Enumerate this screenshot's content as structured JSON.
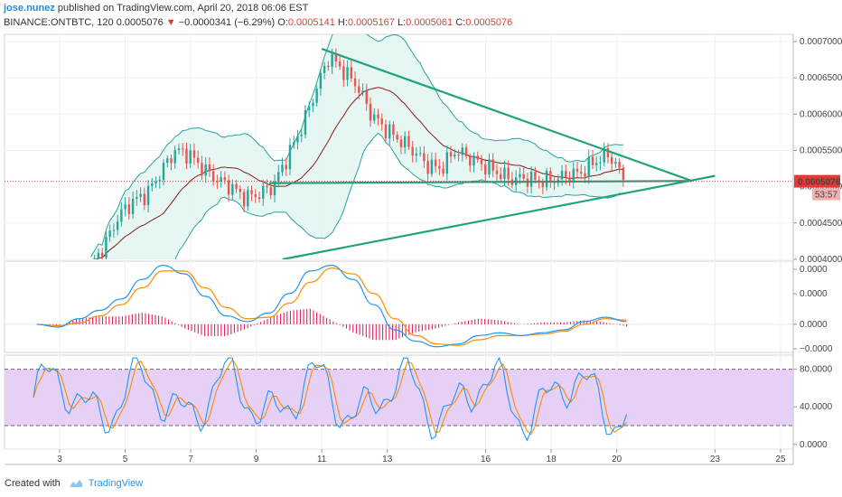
{
  "header": {
    "author": "jose.nunez",
    "published": "published on TradingView.com, April 20, 2018 06:06 EST",
    "symbol": "BINANCE:ONTBTC, 120",
    "last": "0.0005076",
    "change_arrow": "▼",
    "change": "−0.0000341 (−6.29%)",
    "o_label": "O:",
    "o_value": "0.0005141",
    "h_label": "H:",
    "h_value": "0.0005167",
    "l_label": "L:",
    "l_value": "0.0005061",
    "c_label": "C:",
    "c_value": "0.0005076"
  },
  "footer": {
    "created": "Created with",
    "brand": "TradingView"
  },
  "colors": {
    "up": "#26a69a",
    "down": "#ef5350",
    "bb": "#26a69a",
    "bb_fill": "#e0f4ef",
    "basis": "#8b1a1a",
    "trendline": "#1fa37a",
    "macd": "#2196f3",
    "signal": "#ff8a00",
    "hist": "#e91e63",
    "stoch_band": "#e3c8f5",
    "price_line": "#e53935"
  },
  "chart_data": [
    {
      "type": "candlestick",
      "panel": "price",
      "ylim": [
        0.0004,
        0.00071
      ],
      "yticks": [
        "0.0004000",
        "0.0004500",
        "0.0005000",
        "0.0005500",
        "0.0006000",
        "0.0006500",
        "0.0007000"
      ],
      "last_price_label": "0.0005076",
      "countdown_label": "53:57",
      "x_ticks": [
        "3",
        "5",
        "7",
        "9",
        "11",
        "13",
        "16",
        "18",
        "20",
        "23",
        "25"
      ],
      "close_path": [
        0.00039,
        0.00042,
        0.00046,
        0.00048,
        0.00049,
        0.00052,
        0.00055,
        0.000545,
        0.000525,
        0.00051,
        0.0005,
        0.000485,
        0.00049,
        0.0005,
        0.00054,
        0.00058,
        0.00063,
        0.00068,
        0.00066,
        0.00064,
        0.0006,
        0.00058,
        0.000565,
        0.00055,
        0.00053,
        0.000525,
        0.00055,
        0.00054,
        0.00053,
        0.00052,
        0.00051,
        0.000512,
        0.000508,
        0.00051,
        0.000515,
        0.00052,
        0.000535,
        0.000545,
        0.000512
      ],
      "trendlines": [
        {
          "name": "upper-resistance",
          "from": [
            "11",
            0.00069
          ],
          "to": [
            "22.3",
            0.000508
          ]
        },
        {
          "name": "horizontal-support",
          "from": [
            "9.4",
            0.000505
          ],
          "to": [
            "22.3",
            0.000508
          ]
        },
        {
          "name": "rising-support",
          "from": [
            "9.8",
            0.0004
          ],
          "to": [
            "23",
            0.000515
          ]
        }
      ]
    },
    {
      "type": "line",
      "panel": "macd",
      "ylim": [
        -2e-05,
        4.5e-05
      ],
      "yticks": [
        "−0.0000",
        "0.0000",
        "0.0000",
        "0.0000"
      ],
      "series": [
        {
          "values": [
            0,
            -2e-06,
            4e-06,
            1e-05,
            1.8e-05,
            3.2e-05,
            4.2e-05,
            3.6e-05,
            2e-05,
            6e-06,
            2e-06,
            8e-06,
            2.2e-05,
            3.8e-05,
            4.2e-05,
            3.2e-05,
            1.4e-05,
            -4e-06,
            -1.2e-05,
            -1.6e-05,
            -1.4e-05,
            -8e-06,
            -6e-06,
            -8e-06,
            -6e-06,
            -4e-06,
            2e-06,
            5e-06,
            2e-06
          ]
        },
        {
          "values": [
            0,
            -1e-06,
            1e-06,
            6e-06,
            1.4e-05,
            2.6e-05,
            3.8e-05,
            3.8e-05,
            2.6e-05,
            1.2e-05,
            4e-06,
            5e-06,
            1.5e-05,
            3e-05,
            4e-05,
            3.6e-05,
            2.2e-05,
            4e-06,
            -8e-06,
            -1.4e-05,
            -1.5e-05,
            -1.1e-05,
            -8e-06,
            -8e-06,
            -7e-06,
            -5e-06,
            0.0,
            4e-06,
            3e-06
          ]
        }
      ]
    },
    {
      "type": "line",
      "panel": "stochastic",
      "ylim": [
        -5,
        95
      ],
      "yticks": [
        "0.0000",
        "40.0000",
        "80.0000"
      ],
      "band": [
        20,
        80
      ]
    }
  ]
}
